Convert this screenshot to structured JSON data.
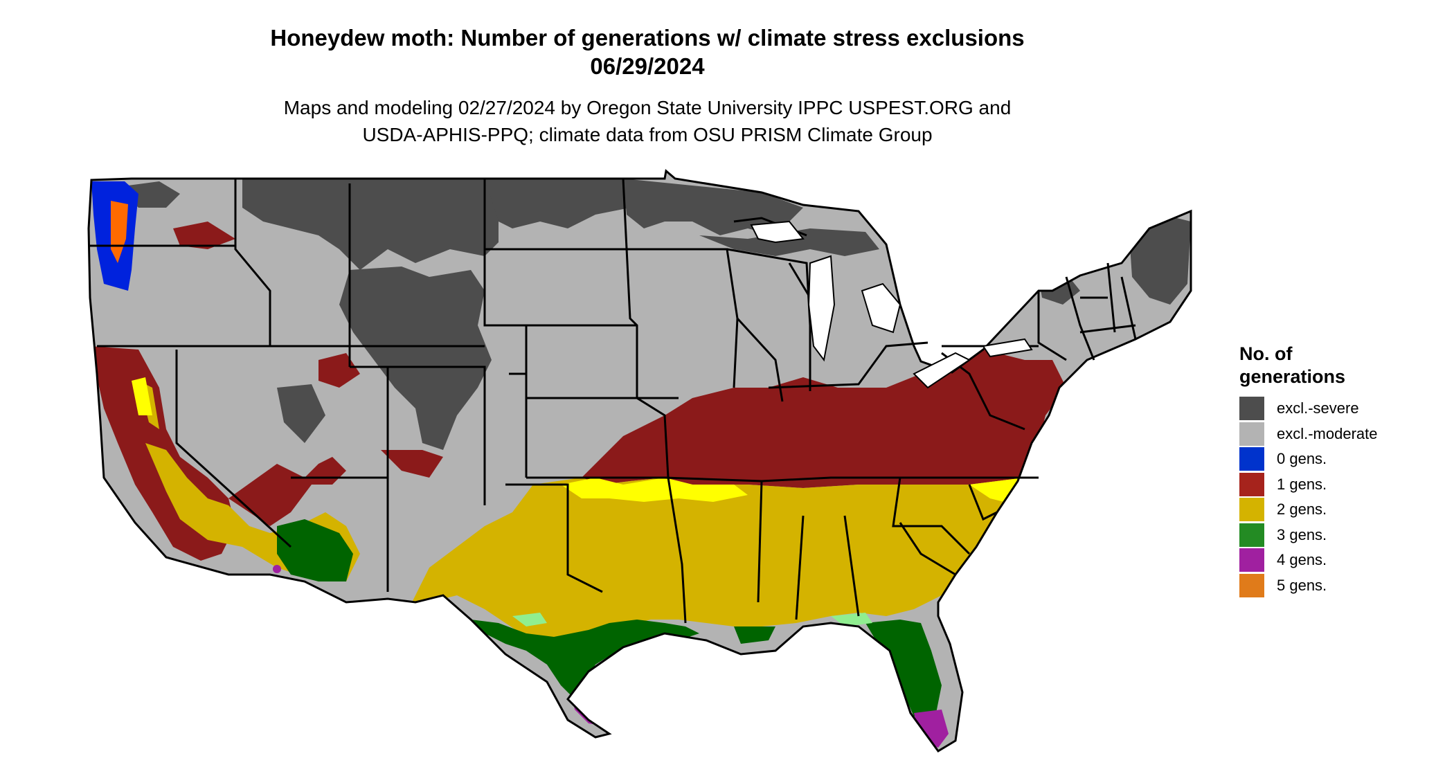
{
  "title": {
    "line1": "Honeydew moth: Number of generations w/ climate stress exclusions",
    "line2": "06/29/2024"
  },
  "subtitle": {
    "line1": "Maps and modeling 02/27/2024 by Oregon State University IPPC USPEST.ORG and",
    "line2": "USDA-APHIS-PPQ; climate data from OSU PRISM Climate Group"
  },
  "legend": {
    "title_line1": "No. of",
    "title_line2": "generations",
    "items": [
      {
        "label": "excl.-severe",
        "color": "#4d4d4d"
      },
      {
        "label": "excl.-moderate",
        "color": "#b3b3b3"
      },
      {
        "label": "0 gens.",
        "color": "#0033cc"
      },
      {
        "label": "1 gens.",
        "color": "#a6231c"
      },
      {
        "label": "2 gens.",
        "color": "#d4b300"
      },
      {
        "label": "3 gens.",
        "color": "#238b23"
      },
      {
        "label": "4 gens.",
        "color": "#a020a0"
      },
      {
        "label": "5 gens.",
        "color": "#e07b1a"
      }
    ]
  },
  "map_colors": {
    "excl_severe": "#4d4d4d",
    "excl_moderate": "#b3b3b3",
    "gen0": "#0022dd",
    "gen1": "#8b1a1a",
    "gen2": "#d4b300",
    "gen2_highlight": "#ffff00",
    "gen3": "#006400",
    "gen3_light": "#90ee90",
    "gen4": "#a020a0",
    "gen5": "#ff6a00",
    "borders": "#000000"
  }
}
